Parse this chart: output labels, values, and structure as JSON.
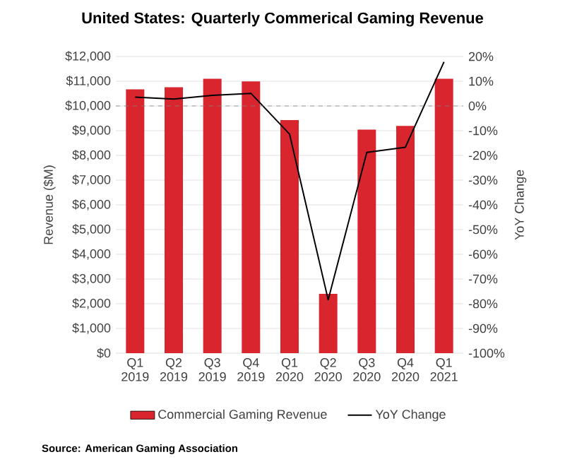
{
  "chart_data": {
    "type": "bar",
    "title": "United States: Quarterly Commerical Gaming Revenue",
    "categories": [
      "Q1 2019",
      "Q2 2019",
      "Q3 2019",
      "Q4 2019",
      "Q1 2020",
      "Q2 2020",
      "Q3 2020",
      "Q4 2020",
      "Q1 2021"
    ],
    "series": [
      {
        "name": "Commercial Gaming Revenue",
        "color": "#d9262e",
        "values": [
          10670,
          10760,
          11100,
          10990,
          9430,
          2400,
          9040,
          9190,
          11100
        ]
      },
      {
        "name": "YoY Change",
        "type": "line",
        "axis": "y2",
        "color": "#000000",
        "values": [
          3.6,
          2.8,
          4.3,
          5.1,
          -11.4,
          -78.4,
          -18.8,
          -16.7,
          17.8
        ]
      }
    ],
    "ylabel": "Revenue ($M)",
    "y2label": "YoY Change",
    "ylim": [
      0,
      12000
    ],
    "yticks": [
      {
        "value": 0,
        "label": "$0"
      },
      {
        "value": 1000,
        "label": "$1,000"
      },
      {
        "value": 2000,
        "label": "$2,000"
      },
      {
        "value": 3000,
        "label": "$3,000"
      },
      {
        "value": 4000,
        "label": "$4,000"
      },
      {
        "value": 5000,
        "label": "$5,000"
      },
      {
        "value": 6000,
        "label": "$6,000"
      },
      {
        "value": 7000,
        "label": "$7,000"
      },
      {
        "value": 8000,
        "label": "$8,000"
      },
      {
        "value": 9000,
        "label": "$9,000"
      },
      {
        "value": 10000,
        "label": "$10,000"
      },
      {
        "value": 11000,
        "label": "$11,000"
      },
      {
        "value": 12000,
        "label": "$12,000"
      }
    ],
    "y2lim": [
      -100,
      20
    ],
    "y2ticks": [
      {
        "value": -100,
        "label": "-100%"
      },
      {
        "value": -90,
        "label": "-90%"
      },
      {
        "value": -80,
        "label": "-80%"
      },
      {
        "value": -70,
        "label": "-70%"
      },
      {
        "value": -60,
        "label": "-60%"
      },
      {
        "value": -50,
        "label": "-50%"
      },
      {
        "value": -40,
        "label": "-40%"
      },
      {
        "value": -30,
        "label": "-30%"
      },
      {
        "value": -20,
        "label": "-20%"
      },
      {
        "value": -10,
        "label": "-10%"
      },
      {
        "value": 0,
        "label": "0%"
      },
      {
        "value": 10,
        "label": "10%"
      },
      {
        "value": 20,
        "label": "20%"
      }
    ],
    "ref_lines": [
      {
        "axis": "y2",
        "value": 0,
        "color": "#888888",
        "line_style": "dashed"
      }
    ],
    "grid": "y",
    "legend": "bottom",
    "annotations": [
      "Source: American Gaming Association"
    ]
  }
}
